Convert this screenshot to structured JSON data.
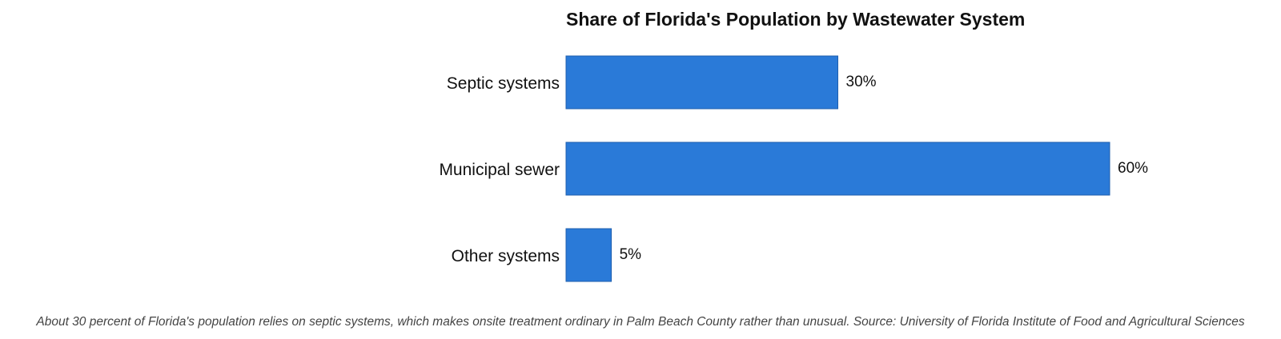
{
  "chart_data": {
    "type": "bar",
    "orientation": "horizontal",
    "title": "Share of Florida's Population by Wastewater System",
    "categories": [
      "Septic systems",
      "Municipal sewer",
      "Other systems"
    ],
    "values": [
      30,
      60,
      5
    ],
    "value_labels": [
      "30%",
      "60%",
      "5%"
    ],
    "xlim": [
      0,
      60
    ],
    "grid": false,
    "bar_color": "#2a7ad8",
    "bar_edge_color": "#1f5fae"
  },
  "caption": "About 30 percent of Florida's population relies on septic systems, which makes onsite treatment ordinary in Palm Beach County rather than unusual. Source: University of Florida Institute of Food and Agricultural Sciences"
}
